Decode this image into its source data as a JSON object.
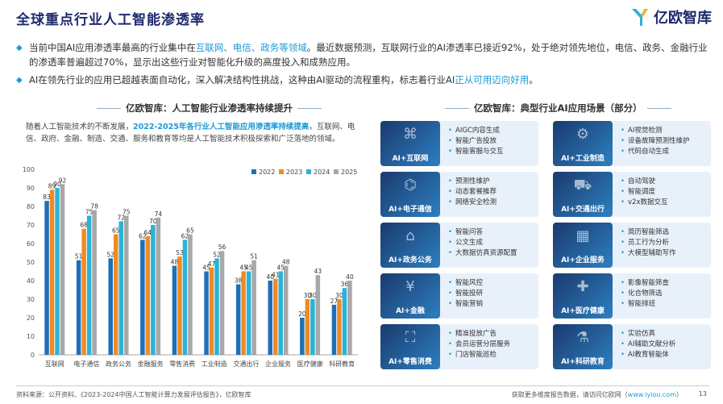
{
  "page": {
    "title": "全球重点行业人工智能渗透率",
    "logo_text": "亿欧智库",
    "bullets": [
      {
        "pre": "当前中国AI应用渗透率最高的行业集中在",
        "hl": "互联网、电信、政务等领域",
        "post": "。最近数据预测，互联网行业的AI渗透率已接近92%，处于绝对领先地位，电信、政务、金融行业的渗透率普遍超过70%，显示出这些行业对智能化升级的高度投入和成熟应用。"
      },
      {
        "pre": "AI在领先行业的应用已超越表面自动化，深入解决结构性挑战，这种由AI驱动的流程重构，标志着行业AI",
        "hl": "正从可用迈向好用",
        "post": "。"
      }
    ],
    "left_panel_title": "亿欧智库：人工智能行业渗透率持续提升",
    "right_panel_title": "亿欧智库：典型行业AI应用场景（部分）",
    "intro_pre": "随着人工智能技术的不断发展，",
    "intro_hl": "2022-2025年各行业人工智能应用渗透率持续提高",
    "intro_post": "，互联网、电信、政府、金融、制造、交通、服务和教育等均是人工智能技术积极探索和广泛落地的领域。",
    "source": "资料来源：公开资料、《2023-2024中国人工智能计算力发展评估报告》，亿欧智库",
    "footer_pre": "获取更多维度报告数据，请访问亿欧网（",
    "footer_url": "www.iyiou.com",
    "footer_post": "）",
    "page_number": "13"
  },
  "scenarios": [
    {
      "label": "AI+互联网",
      "icon": "network-icon",
      "items": [
        "AIGC内容生成",
        "智能广告投放",
        "智能客服与交互"
      ]
    },
    {
      "label": "AI+工业制造",
      "icon": "robot-arm-icon",
      "items": [
        "AI视觉检测",
        "设备故障预测性维护",
        "代码自动生成"
      ]
    },
    {
      "label": "AI+电子通信",
      "icon": "antenna-icon",
      "items": [
        "预测性维护",
        "动态套餐推荐",
        "网络安全检测"
      ]
    },
    {
      "label": "AI+交通出行",
      "icon": "car-icon",
      "items": [
        "自动驾驶",
        "智能调度",
        "v2x数据交互"
      ]
    },
    {
      "label": "AI+政务公务",
      "icon": "government-icon",
      "items": [
        "智能问答",
        "公文生成",
        "大数据仿真资源配置"
      ]
    },
    {
      "label": "AI+企业服务",
      "icon": "office-icon",
      "items": [
        "简历智能筛选",
        "员工行为分析",
        "大模型辅助写作"
      ]
    },
    {
      "label": "AI+金融",
      "icon": "coin-icon",
      "items": [
        "智能风控",
        "智能投研",
        "智能营销"
      ]
    },
    {
      "label": "AI+医疗健康",
      "icon": "medical-icon",
      "items": [
        "影像智能筛查",
        "化合物筛选",
        "智能排班"
      ]
    },
    {
      "label": "AI+零售消费",
      "icon": "shopping-icon",
      "items": [
        "精准投放广告",
        "会员运营分层服务",
        "门店智能巡检"
      ]
    },
    {
      "label": "AI+科研教育",
      "icon": "flask-icon",
      "items": [
        "实验仿真",
        "AI辅助文献分析",
        "AI教育智能体"
      ]
    }
  ],
  "chart_data": {
    "type": "bar",
    "categories": [
      "互联网",
      "电子通信",
      "政务公务",
      "金融服务",
      "零售消费",
      "工业制造",
      "交通出行",
      "企业服务",
      "医疗健康",
      "科研教育"
    ],
    "series": [
      {
        "name": "2022",
        "color": "#1f6fb8",
        "values": [
          83,
          51,
          52,
          62,
          48,
          45,
          38,
          40,
          20,
          27
        ]
      },
      {
        "name": "2023",
        "color": "#f08a24",
        "values": [
          89,
          68,
          65,
          64,
          53,
          47,
          45,
          41,
          30,
          30
        ]
      },
      {
        "name": "2024",
        "color": "#2ab3d6",
        "values": [
          90,
          75,
          72,
          70,
          62,
          52,
          45,
          45,
          30,
          36
        ]
      },
      {
        "name": "2025",
        "color": "#a8a8a8",
        "values": [
          92,
          78,
          75,
          74,
          65,
          56,
          51,
          48,
          43,
          40
        ]
      }
    ],
    "ylim": [
      0,
      100
    ],
    "yticks": [
      0,
      10,
      20,
      30,
      40,
      50,
      60,
      70,
      80,
      90,
      100
    ],
    "legend_position": "top-right",
    "grid": false
  }
}
